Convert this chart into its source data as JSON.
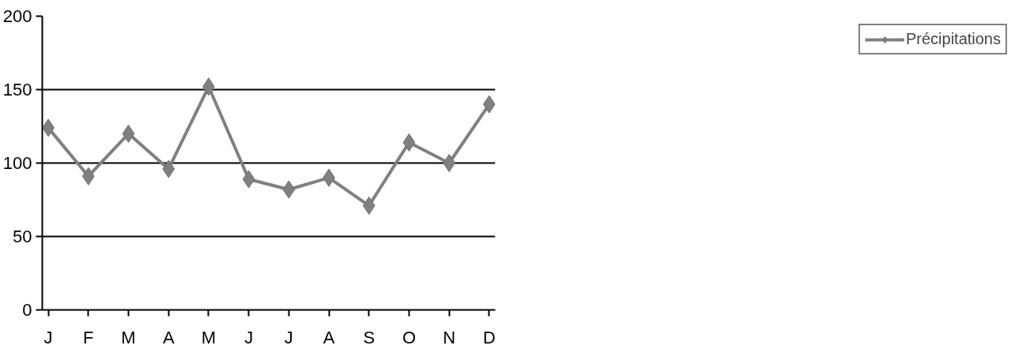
{
  "chart_data": {
    "type": "line",
    "categories": [
      "J",
      "F",
      "M",
      "A",
      "M",
      "J",
      "J",
      "A",
      "S",
      "O",
      "N",
      "D"
    ],
    "series": [
      {
        "name": "Précipitations",
        "color": "#808080",
        "values": [
          124,
          91,
          120,
          96,
          152,
          89,
          82,
          90,
          71,
          114,
          100,
          140
        ]
      }
    ],
    "ylim": [
      0,
      200
    ],
    "yticks": [
      0,
      50,
      100,
      150,
      200
    ],
    "grid": "y",
    "legend": "right",
    "marker": "diamond",
    "line_style": "solid"
  }
}
